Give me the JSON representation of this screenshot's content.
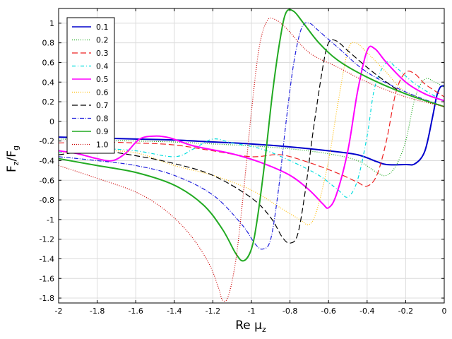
{
  "chart_data": {
    "type": "line",
    "xlabel_main": "Re μ",
    "xlabel_sub": "z",
    "ylabel_main": "F",
    "ylabel_sub1": "z",
    "ylabel_slash": "/F",
    "ylabel_sub2": "g",
    "xlim": [
      -2,
      0
    ],
    "ylim": [
      -1.85,
      1.15
    ],
    "grid": true,
    "legend_position": "top-left",
    "x_ticks": [
      "-2",
      "-1.8",
      "-1.6",
      "-1.4",
      "-1.2",
      "-1",
      "-0.8",
      "-0.6",
      "-0.4",
      "-0.2",
      "0"
    ],
    "y_ticks": [
      "-1.8",
      "-1.6",
      "-1.4",
      "-1.2",
      "-1",
      "-0.8",
      "-0.6",
      "-0.4",
      "-0.2",
      "0",
      "0.2",
      "0.4",
      "0.6",
      "0.8",
      "1"
    ],
    "series": [
      {
        "name": "0.1",
        "color": "#0000cc",
        "dash": "",
        "width": 2.0,
        "points": [
          [
            -2,
            -0.16
          ],
          [
            -1.8,
            -0.17
          ],
          [
            -1.6,
            -0.18
          ],
          [
            -1.4,
            -0.19
          ],
          [
            -1.2,
            -0.21
          ],
          [
            -1.0,
            -0.23
          ],
          [
            -0.8,
            -0.26
          ],
          [
            -0.6,
            -0.3
          ],
          [
            -0.45,
            -0.34
          ],
          [
            -0.35,
            -0.41
          ],
          [
            -0.3,
            -0.44
          ],
          [
            -0.2,
            -0.44
          ],
          [
            -0.15,
            -0.43
          ],
          [
            -0.1,
            -0.3
          ],
          [
            -0.06,
            0.05
          ],
          [
            -0.04,
            0.25
          ],
          [
            -0.02,
            0.35
          ],
          [
            0,
            0.36
          ]
        ]
      },
      {
        "name": "0.2",
        "color": "#22aa22",
        "dash": "1,2",
        "width": 1.2,
        "points": [
          [
            -2,
            -0.18
          ],
          [
            -1.8,
            -0.19
          ],
          [
            -1.6,
            -0.2
          ],
          [
            -1.4,
            -0.21
          ],
          [
            -1.2,
            -0.23
          ],
          [
            -1.0,
            -0.25
          ],
          [
            -0.8,
            -0.28
          ],
          [
            -0.6,
            -0.33
          ],
          [
            -0.45,
            -0.4
          ],
          [
            -0.35,
            -0.52
          ],
          [
            -0.3,
            -0.55
          ],
          [
            -0.25,
            -0.45
          ],
          [
            -0.2,
            -0.2
          ],
          [
            -0.15,
            0.25
          ],
          [
            -0.1,
            0.43
          ],
          [
            -0.05,
            0.4
          ],
          [
            0,
            0.35
          ]
        ]
      },
      {
        "name": "0.3",
        "color": "#ee2222",
        "dash": "8,4",
        "width": 1.2,
        "points": [
          [
            -2,
            -0.22
          ],
          [
            -1.8,
            -0.21
          ],
          [
            -1.6,
            -0.22
          ],
          [
            -1.4,
            -0.24
          ],
          [
            -1.2,
            -0.3
          ],
          [
            -1.0,
            -0.36
          ],
          [
            -0.85,
            -0.34
          ],
          [
            -0.7,
            -0.42
          ],
          [
            -0.55,
            -0.53
          ],
          [
            -0.45,
            -0.62
          ],
          [
            -0.4,
            -0.66
          ],
          [
            -0.35,
            -0.55
          ],
          [
            -0.3,
            -0.2
          ],
          [
            -0.25,
            0.3
          ],
          [
            -0.2,
            0.5
          ],
          [
            -0.15,
            0.48
          ],
          [
            -0.1,
            0.38
          ],
          [
            0,
            0.25
          ]
        ]
      },
      {
        "name": "0.4",
        "color": "#00dddd",
        "dash": "5,3,1,3",
        "width": 1.2,
        "points": [
          [
            -2,
            -0.32
          ],
          [
            -1.8,
            -0.28
          ],
          [
            -1.6,
            -0.3
          ],
          [
            -1.4,
            -0.36
          ],
          [
            -1.3,
            -0.28
          ],
          [
            -1.2,
            -0.18
          ],
          [
            -1.1,
            -0.22
          ],
          [
            -0.95,
            -0.28
          ],
          [
            -0.8,
            -0.4
          ],
          [
            -0.65,
            -0.55
          ],
          [
            -0.55,
            -0.7
          ],
          [
            -0.5,
            -0.77
          ],
          [
            -0.45,
            -0.6
          ],
          [
            -0.4,
            -0.15
          ],
          [
            -0.36,
            0.35
          ],
          [
            -0.3,
            0.6
          ],
          [
            -0.25,
            0.55
          ],
          [
            -0.15,
            0.38
          ],
          [
            0,
            0.2
          ]
        ]
      },
      {
        "name": "0.5",
        "color": "#ff00ff",
        "dash": "",
        "width": 2.0,
        "points": [
          [
            -2,
            -0.3
          ],
          [
            -1.9,
            -0.33
          ],
          [
            -1.8,
            -0.38
          ],
          [
            -1.72,
            -0.4
          ],
          [
            -1.65,
            -0.32
          ],
          [
            -1.58,
            -0.18
          ],
          [
            -1.5,
            -0.15
          ],
          [
            -1.42,
            -0.17
          ],
          [
            -1.3,
            -0.25
          ],
          [
            -1.1,
            -0.33
          ],
          [
            -0.95,
            -0.42
          ],
          [
            -0.8,
            -0.55
          ],
          [
            -0.7,
            -0.7
          ],
          [
            -0.63,
            -0.84
          ],
          [
            -0.6,
            -0.88
          ],
          [
            -0.56,
            -0.75
          ],
          [
            -0.5,
            -0.3
          ],
          [
            -0.45,
            0.3
          ],
          [
            -0.4,
            0.72
          ],
          [
            -0.36,
            0.74
          ],
          [
            -0.3,
            0.6
          ],
          [
            -0.2,
            0.4
          ],
          [
            -0.1,
            0.28
          ],
          [
            0,
            0.21
          ]
        ]
      },
      {
        "name": "0.6",
        "color": "#ffbb00",
        "dash": "1,2",
        "width": 1.2,
        "points": [
          [
            -2,
            -0.32
          ],
          [
            -1.8,
            -0.3
          ],
          [
            -1.6,
            -0.32
          ],
          [
            -1.4,
            -0.45
          ],
          [
            -1.2,
            -0.55
          ],
          [
            -1.0,
            -0.7
          ],
          [
            -0.85,
            -0.88
          ],
          [
            -0.75,
            -1.0
          ],
          [
            -0.7,
            -1.05
          ],
          [
            -0.66,
            -0.9
          ],
          [
            -0.6,
            -0.4
          ],
          [
            -0.55,
            0.2
          ],
          [
            -0.5,
            0.72
          ],
          [
            -0.46,
            0.8
          ],
          [
            -0.4,
            0.7
          ],
          [
            -0.3,
            0.5
          ],
          [
            -0.2,
            0.3
          ],
          [
            0,
            0.15
          ]
        ]
      },
      {
        "name": "0.7",
        "color": "#000000",
        "dash": "8,4",
        "width": 1.2,
        "points": [
          [
            -2,
            -0.34
          ],
          [
            -1.8,
            -0.3
          ],
          [
            -1.6,
            -0.35
          ],
          [
            -1.4,
            -0.43
          ],
          [
            -1.2,
            -0.55
          ],
          [
            -1.0,
            -0.78
          ],
          [
            -0.9,
            -0.98
          ],
          [
            -0.84,
            -1.18
          ],
          [
            -0.8,
            -1.24
          ],
          [
            -0.76,
            -1.15
          ],
          [
            -0.72,
            -0.7
          ],
          [
            -0.68,
            -0.1
          ],
          [
            -0.63,
            0.55
          ],
          [
            -0.6,
            0.8
          ],
          [
            -0.56,
            0.82
          ],
          [
            -0.5,
            0.72
          ],
          [
            -0.4,
            0.55
          ],
          [
            -0.3,
            0.4
          ],
          [
            -0.2,
            0.28
          ],
          [
            0,
            0.15
          ]
        ]
      },
      {
        "name": "0.8",
        "color": "#2222dd",
        "dash": "6,2,1,2",
        "width": 1.2,
        "points": [
          [
            -2,
            -0.36
          ],
          [
            -1.8,
            -0.4
          ],
          [
            -1.6,
            -0.45
          ],
          [
            -1.4,
            -0.55
          ],
          [
            -1.2,
            -0.75
          ],
          [
            -1.05,
            -1.05
          ],
          [
            -0.98,
            -1.25
          ],
          [
            -0.94,
            -1.3
          ],
          [
            -0.9,
            -1.2
          ],
          [
            -0.86,
            -0.7
          ],
          [
            -0.82,
            0.0
          ],
          [
            -0.78,
            0.6
          ],
          [
            -0.74,
            0.95
          ],
          [
            -0.7,
            1.0
          ],
          [
            -0.65,
            0.92
          ],
          [
            -0.55,
            0.75
          ],
          [
            -0.4,
            0.5
          ],
          [
            -0.2,
            0.3
          ],
          [
            0,
            0.15
          ]
        ]
      },
      {
        "name": "0.9",
        "color": "#22aa22",
        "dash": "",
        "width": 2.0,
        "points": [
          [
            -2,
            -0.38
          ],
          [
            -1.8,
            -0.45
          ],
          [
            -1.6,
            -0.52
          ],
          [
            -1.4,
            -0.65
          ],
          [
            -1.25,
            -0.85
          ],
          [
            -1.15,
            -1.1
          ],
          [
            -1.08,
            -1.35
          ],
          [
            -1.04,
            -1.42
          ],
          [
            -1.0,
            -1.3
          ],
          [
            -0.97,
            -1.0
          ],
          [
            -0.93,
            -0.4
          ],
          [
            -0.89,
            0.3
          ],
          [
            -0.85,
            0.85
          ],
          [
            -0.82,
            1.11
          ],
          [
            -0.78,
            1.12
          ],
          [
            -0.73,
            1.0
          ],
          [
            -0.65,
            0.8
          ],
          [
            -0.55,
            0.62
          ],
          [
            -0.4,
            0.45
          ],
          [
            -0.2,
            0.28
          ],
          [
            0,
            0.15
          ]
        ]
      },
      {
        "name": "1.0",
        "color": "#cc0000",
        "dash": "1,2",
        "width": 1.2,
        "points": [
          [
            -2,
            -0.45
          ],
          [
            -1.8,
            -0.58
          ],
          [
            -1.6,
            -0.72
          ],
          [
            -1.45,
            -0.9
          ],
          [
            -1.32,
            -1.15
          ],
          [
            -1.22,
            -1.45
          ],
          [
            -1.17,
            -1.7
          ],
          [
            -1.15,
            -1.82
          ],
          [
            -1.12,
            -1.78
          ],
          [
            -1.08,
            -1.4
          ],
          [
            -1.04,
            -0.7
          ],
          [
            -1.0,
            0.1
          ],
          [
            -0.96,
            0.75
          ],
          [
            -0.92,
            1.02
          ],
          [
            -0.88,
            1.04
          ],
          [
            -0.82,
            0.95
          ],
          [
            -0.7,
            0.7
          ],
          [
            -0.55,
            0.55
          ],
          [
            -0.4,
            0.4
          ],
          [
            -0.2,
            0.25
          ],
          [
            0,
            0.15
          ]
        ]
      }
    ]
  }
}
